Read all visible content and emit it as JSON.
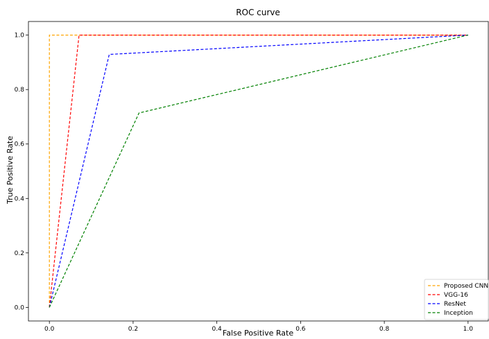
{
  "chart_data": {
    "type": "line",
    "title": "ROC curve",
    "xlabel": "False Positive Rate",
    "ylabel": "True Positive Rate",
    "xlim": [
      -0.05,
      1.05
    ],
    "ylim": [
      -0.05,
      1.05
    ],
    "xticks": [
      0.0,
      0.2,
      0.4,
      0.6,
      0.8,
      1.0
    ],
    "yticks": [
      0.0,
      0.2,
      0.4,
      0.6,
      0.8,
      1.0
    ],
    "xtick_labels": [
      "0.0",
      "0.2",
      "0.4",
      "0.6",
      "0.8",
      "1.0"
    ],
    "ytick_labels": [
      "0.0",
      "0.2",
      "0.4",
      "0.6",
      "0.8",
      "1.0"
    ],
    "grid": false,
    "legend_position": "bottom-right",
    "line_style": "dashed",
    "series": [
      {
        "name": "Proposed CNN",
        "color": "#ffa500",
        "x": [
          0.0,
          0.0,
          1.0
        ],
        "y": [
          0.0,
          1.0,
          1.0
        ]
      },
      {
        "name": "VGG-16",
        "color": "#ff0000",
        "x": [
          0.0,
          0.071,
          1.0
        ],
        "y": [
          0.0,
          1.0,
          1.0
        ]
      },
      {
        "name": "ResNet",
        "color": "#0000ff",
        "x": [
          0.0,
          0.143,
          1.0
        ],
        "y": [
          0.0,
          0.929,
          1.0
        ]
      },
      {
        "name": "Inception",
        "color": "#008000",
        "x": [
          0.0,
          0.214,
          1.0
        ],
        "y": [
          0.0,
          0.714,
          1.0
        ]
      }
    ]
  }
}
